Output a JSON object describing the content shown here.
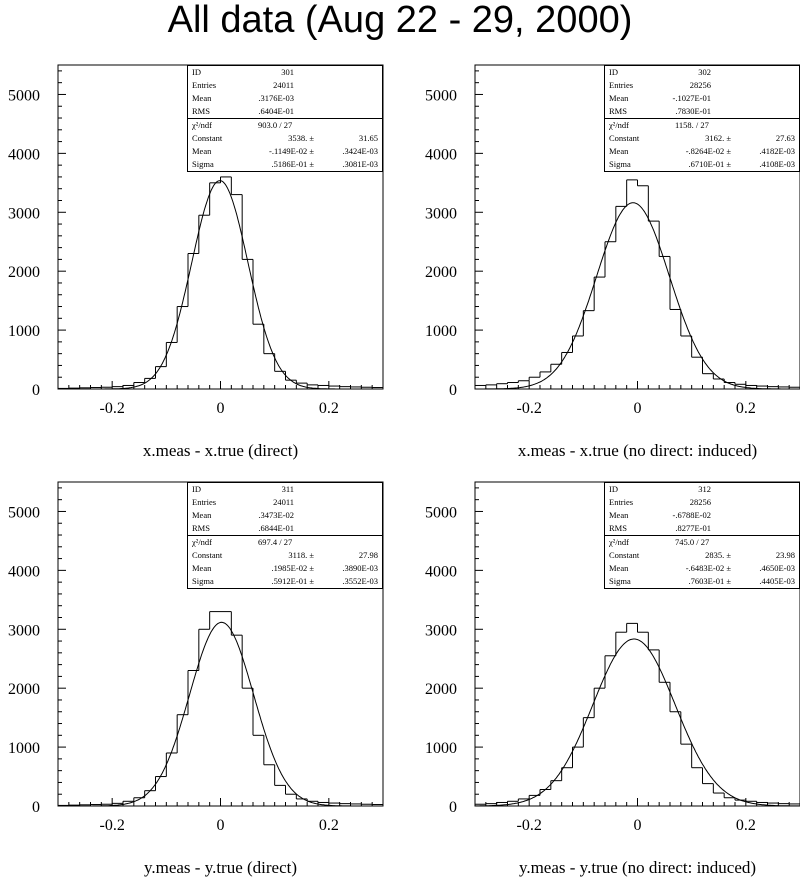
{
  "title": "All data (Aug 22 - 29, 2000)",
  "chart_data": [
    {
      "type": "histogram",
      "xlabel": "x.meas - x.true (direct)",
      "xlim": [
        -0.3,
        0.3
      ],
      "ylim": [
        0,
        5500
      ],
      "xticks": [
        "-0.2",
        "0",
        "0.2"
      ],
      "yticks": [
        "0",
        "1000",
        "2000",
        "3000",
        "4000",
        "5000"
      ],
      "stats": {
        "id": "301",
        "entries": "24011",
        "mean": ".3176E-03",
        "rms": ".6404E-01",
        "chi2": "903.0",
        "ndf": "27",
        "constant": "3538.",
        "constant_err": "31.65",
        "fit_mean": "-.1149E-02",
        "fit_mean_err": ".3424E-03",
        "sigma": ".5186E-01",
        "sigma_err": ".3081E-03"
      },
      "fit": {
        "constant": 3538,
        "mean": -0.00115,
        "sigma": 0.0519
      },
      "bin_edges": [
        -0.3,
        -0.28,
        -0.26,
        -0.24,
        -0.22,
        -0.2,
        -0.18,
        -0.16,
        -0.14,
        -0.12,
        -0.1,
        -0.08,
        -0.06,
        -0.04,
        -0.02,
        0,
        0.02,
        0.04,
        0.06,
        0.08,
        0.1,
        0.12,
        0.14,
        0.16,
        0.18,
        0.2,
        0.22,
        0.24,
        0.26,
        0.28,
        0.3
      ],
      "counts": [
        10,
        15,
        20,
        25,
        30,
        40,
        60,
        110,
        180,
        380,
        790,
        1400,
        2300,
        2950,
        3500,
        3600,
        3300,
        2200,
        1100,
        600,
        300,
        150,
        100,
        70,
        60,
        50,
        40,
        35,
        30,
        25
      ]
    },
    {
      "type": "histogram",
      "xlabel": "x.meas - x.true (no direct: induced)",
      "xlim": [
        -0.3,
        0.3
      ],
      "ylim": [
        0,
        5500
      ],
      "xticks": [
        "-0.2",
        "0",
        "0.2"
      ],
      "yticks": [
        "0",
        "1000",
        "2000",
        "3000",
        "4000",
        "5000"
      ],
      "stats": {
        "id": "302",
        "entries": "28256",
        "mean": "-.1027E-01",
        "rms": ".7830E-01",
        "chi2": "1158.",
        "ndf": "27",
        "constant": "3162.",
        "constant_err": "27.63",
        "fit_mean": "-.8264E-02",
        "fit_mean_err": ".4182E-03",
        "sigma": ".6710E-01",
        "sigma_err": ".4108E-03"
      },
      "fit": {
        "constant": 3162,
        "mean": -0.00826,
        "sigma": 0.0671
      },
      "bin_edges": [
        -0.3,
        -0.28,
        -0.26,
        -0.24,
        -0.22,
        -0.2,
        -0.18,
        -0.16,
        -0.14,
        -0.12,
        -0.1,
        -0.08,
        -0.06,
        -0.04,
        -0.02,
        0,
        0.02,
        0.04,
        0.06,
        0.08,
        0.1,
        0.12,
        0.14,
        0.16,
        0.18,
        0.2,
        0.22,
        0.24,
        0.26,
        0.28,
        0.3
      ],
      "counts": [
        60,
        70,
        90,
        110,
        140,
        200,
        290,
        420,
        620,
        900,
        1330,
        1900,
        2500,
        3100,
        3550,
        3450,
        2850,
        2250,
        1350,
        900,
        540,
        260,
        170,
        110,
        80,
        60,
        50,
        40,
        35,
        30
      ]
    },
    {
      "type": "histogram",
      "xlabel": "y.meas - y.true (direct)",
      "xlim": [
        -0.3,
        0.3
      ],
      "ylim": [
        0,
        5500
      ],
      "xticks": [
        "-0.2",
        "0",
        "0.2"
      ],
      "yticks": [
        "0",
        "1000",
        "2000",
        "3000",
        "4000",
        "5000"
      ],
      "stats": {
        "id": "311",
        "entries": "24011",
        "mean": ".3473E-02",
        "rms": ".6844E-01",
        "chi2": "697.4",
        "ndf": "27",
        "constant": "3118.",
        "constant_err": "27.98",
        "fit_mean": ".1985E-02",
        "fit_mean_err": ".3890E-03",
        "sigma": ".5912E-01",
        "sigma_err": ".3552E-03"
      },
      "fit": {
        "constant": 3118,
        "mean": 0.00199,
        "sigma": 0.0591
      },
      "bin_edges": [
        -0.3,
        -0.28,
        -0.26,
        -0.24,
        -0.22,
        -0.2,
        -0.18,
        -0.16,
        -0.14,
        -0.12,
        -0.1,
        -0.08,
        -0.06,
        -0.04,
        -0.02,
        0,
        0.02,
        0.04,
        0.06,
        0.08,
        0.1,
        0.12,
        0.14,
        0.16,
        0.18,
        0.2,
        0.22,
        0.24,
        0.26,
        0.28,
        0.3
      ],
      "counts": [
        10,
        15,
        20,
        25,
        30,
        45,
        80,
        140,
        260,
        500,
        900,
        1550,
        2300,
        3000,
        3300,
        3300,
        2900,
        2000,
        1200,
        700,
        350,
        200,
        120,
        80,
        60,
        50,
        40,
        35,
        30,
        25
      ]
    },
    {
      "type": "histogram",
      "xlabel": "y.meas - y.true (no direct: induced)",
      "xlim": [
        -0.3,
        0.3
      ],
      "ylim": [
        0,
        5500
      ],
      "xticks": [
        "-0.2",
        "0",
        "0.2"
      ],
      "yticks": [
        "0",
        "1000",
        "2000",
        "3000",
        "4000",
        "5000"
      ],
      "stats": {
        "id": "312",
        "entries": "28256",
        "mean": "-.6788E-02",
        "rms": ".8277E-01",
        "chi2": "745.0",
        "ndf": "27",
        "constant": "2835.",
        "constant_err": "23.98",
        "fit_mean": "-.6483E-02",
        "fit_mean_err": ".4650E-03",
        "sigma": ".7603E-01",
        "sigma_err": ".4405E-03"
      },
      "fit": {
        "constant": 2835,
        "mean": -0.00648,
        "sigma": 0.076
      },
      "bin_edges": [
        -0.3,
        -0.28,
        -0.26,
        -0.24,
        -0.22,
        -0.2,
        -0.18,
        -0.16,
        -0.14,
        -0.12,
        -0.1,
        -0.08,
        -0.06,
        -0.04,
        -0.02,
        0,
        0.02,
        0.04,
        0.06,
        0.08,
        0.1,
        0.12,
        0.14,
        0.16,
        0.18,
        0.2,
        0.22,
        0.24,
        0.26,
        0.28,
        0.3
      ],
      "counts": [
        30,
        40,
        60,
        80,
        120,
        180,
        280,
        430,
        650,
        1000,
        1500,
        2000,
        2550,
        2950,
        3100,
        2950,
        2650,
        2100,
        1600,
        1050,
        650,
        380,
        220,
        140,
        100,
        80,
        60,
        50,
        40,
        35
      ]
    }
  ],
  "stat_labels": {
    "id": "ID",
    "entries": "Entries",
    "mean": "Mean",
    "rms": "RMS",
    "chi2": "χ²/ndf",
    "constant": "Constant",
    "sigma": "Sigma"
  }
}
